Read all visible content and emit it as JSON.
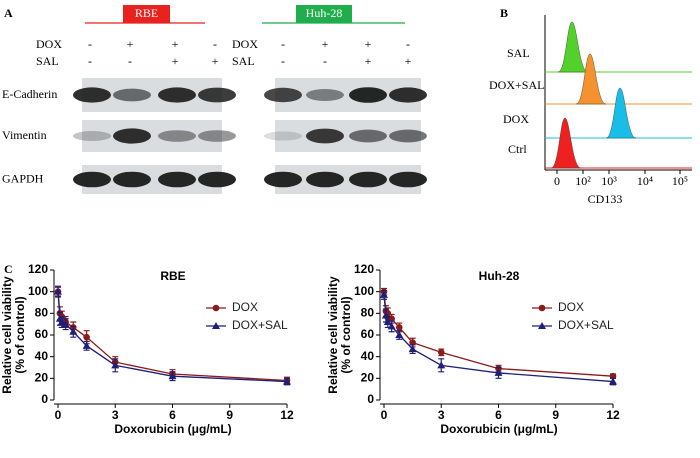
{
  "panel_a": {
    "label": "A",
    "groups": [
      {
        "name": "RBE",
        "color": "#e8231f"
      },
      {
        "name": "Huh-28",
        "color": "#1fae4b"
      }
    ],
    "treatments": [
      {
        "name": "DOX",
        "signs": [
          "-",
          "+",
          "+",
          "-"
        ]
      },
      {
        "name": "SAL",
        "signs": [
          "-",
          "-",
          "+",
          "+"
        ]
      }
    ],
    "blots": [
      "E-Cadherin",
      "Vimentin",
      "GAPDH"
    ]
  },
  "panel_b": {
    "label": "B",
    "rows": [
      {
        "name": "SAL",
        "color": "#52d12b"
      },
      {
        "name": "DOX+SAL",
        "color": "#f5912f"
      },
      {
        "name": "DOX",
        "color": "#18bde8"
      },
      {
        "name": "Ctrl",
        "color": "#ee2020"
      }
    ],
    "xticks": [
      "0",
      "10²",
      "10³",
      "10⁴",
      "10⁵"
    ],
    "xlabel": "CD133"
  },
  "panel_c": {
    "label": "C"
  },
  "chart_data": [
    {
      "type": "line",
      "title": "RBE",
      "xlabel": "Doxorubicin (μg/mL)",
      "ylabel": [
        "Relative cell viability",
        "(% of control)"
      ],
      "x": [
        0,
        0.1,
        0.2,
        0.4,
        0.8,
        1.5,
        3,
        6,
        12
      ],
      "xlim": [
        0,
        12
      ],
      "xticks": [
        0,
        3,
        6,
        9,
        12
      ],
      "ylim": [
        0,
        120
      ],
      "yticks": [
        0,
        20,
        40,
        60,
        80,
        100,
        120
      ],
      "series": [
        {
          "name": "DOX",
          "color": "#8b1a1a",
          "marker": "circle",
          "values": [
            100,
            80,
            77,
            72,
            67,
            58,
            35,
            24,
            18
          ],
          "errors": [
            4,
            6,
            5,
            5,
            5,
            6,
            5,
            4,
            3
          ]
        },
        {
          "name": "DOX+SAL",
          "color": "#1f1f78",
          "marker": "triangle",
          "values": [
            100,
            75,
            72,
            70,
            63,
            50,
            32,
            22,
            17
          ],
          "errors": [
            5,
            6,
            5,
            5,
            5,
            4,
            6,
            4,
            3
          ]
        }
      ]
    },
    {
      "type": "line",
      "title": "Huh-28",
      "xlabel": "Doxorubicin (μg/mL)",
      "ylabel": [
        "Relative cell viability",
        "(% of control)"
      ],
      "x": [
        0,
        0.1,
        0.2,
        0.4,
        0.8,
        1.5,
        3,
        6,
        12
      ],
      "xlim": [
        0,
        12
      ],
      "xticks": [
        0,
        3,
        6,
        9,
        12
      ],
      "ylim": [
        0,
        120
      ],
      "yticks": [
        0,
        20,
        40,
        60,
        80,
        100,
        120
      ],
      "series": [
        {
          "name": "DOX",
          "color": "#8b1a1a",
          "marker": "circle",
          "values": [
            100,
            82,
            80,
            75,
            67,
            53,
            44,
            29,
            22
          ],
          "errors": [
            3,
            5,
            5,
            4,
            4,
            4,
            3,
            3,
            2
          ]
        },
        {
          "name": "DOX+SAL",
          "color": "#1f1f78",
          "marker": "triangle",
          "values": [
            97,
            78,
            72,
            68,
            60,
            47,
            32,
            25,
            17
          ],
          "errors": [
            4,
            6,
            5,
            5,
            4,
            4,
            6,
            5,
            3
          ]
        }
      ]
    }
  ]
}
